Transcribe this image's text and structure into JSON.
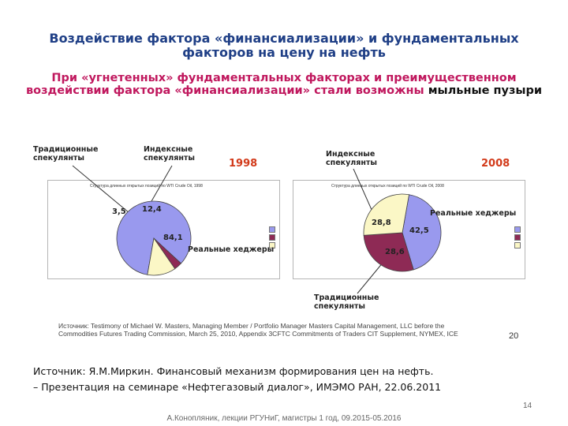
{
  "slide": {
    "title": "Воздействие фактора «финансиализации» и фундаментальных факторов на цену на нефть",
    "subtitle_main": "При «угнетенных» фундаментальных факторах и преимущественном воздействии фактора «финансиализации» стали возможны",
    "subtitle_tail": " мыльные пузыри",
    "footer": "А.Конопляник, лекции РГУНиГ, магистры 1 год, 09.2015-05.2016",
    "page_number": "14"
  },
  "figure": {
    "left_labels": {
      "traditional": "Традиционные спекулянты",
      "index": "Индексные спекулянты"
    },
    "right_labels": {
      "index": "Индексные спекулянты",
      "traditional": "Традиционные спекулянты"
    },
    "year_left": "1998",
    "year_right": "2008",
    "hedgers_label": "Реальные хеджеры",
    "panel_title_left": "Структура длинных открытых позиций по WTI Crude Oil, 1998",
    "panel_title_right": "Структура длинных открытых позиций по WTI Crude Oil, 2008",
    "source_small": "Источник: Testimony of Michael W. Masters, Managing Member / Portfolio Manager Masters Capital Management, LLC before the Commodities Futures Trading Commission, March 25, 2010, Appendix 3CFTC Commitments of Traders CIT Supplement, NYMEX, ICE",
    "corner_number": "20"
  },
  "chart_data": [
    {
      "type": "pie",
      "year": "1998",
      "labels": [
        "Реальные хеджеры",
        "Традиционные спекулянты",
        "Индексные спекулянты"
      ],
      "values": [
        84.1,
        3.5,
        12.4
      ],
      "value_labels": [
        "84,1",
        "3,5",
        "12,4"
      ],
      "colors": [
        "#9999ee",
        "#8e2a55",
        "#fbf7c6"
      ]
    },
    {
      "type": "pie",
      "year": "2008",
      "labels": [
        "Реальные хеджеры",
        "Традиционные спекулянты",
        "Индексные спекулянты"
      ],
      "values": [
        42.5,
        28.6,
        28.8
      ],
      "value_labels": [
        "42,5",
        "28,6",
        "28,8"
      ],
      "colors": [
        "#9999ee",
        "#8e2a55",
        "#fbf7c6"
      ]
    }
  ],
  "source": {
    "line1": "Источник: Я.М.Миркин. Финансовый механизм формирования цен на нефть.",
    "line2": "– Презентация на семинаре «Нефтегазовый диалог», ИМЭМО РАН, 22.06.2011"
  }
}
